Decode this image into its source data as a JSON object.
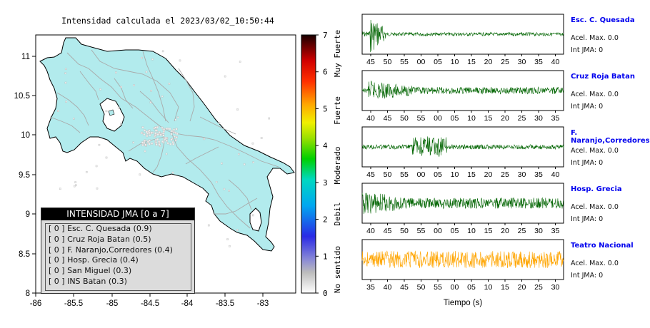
{
  "map": {
    "title": "Intensidad calculada el 2023/03/02_10:50:44",
    "lon_ticks": [
      "-86",
      "-85.5",
      "-85",
      "-84.5",
      "-84",
      "-83.5",
      "-83"
    ],
    "lat_ticks": [
      "11",
      "10.5",
      "10",
      "9.5",
      "9",
      "8.5",
      "8"
    ],
    "land_color": "#b2ebed",
    "border_color": "#000000",
    "road_color": "#a9a9a9"
  },
  "colorbar": {
    "ticks": [
      "7",
      "6",
      "5",
      "4",
      "3",
      "2",
      "1",
      "0"
    ],
    "category_labels": [
      "Muy Fuerte",
      "Fuerte",
      "Moderado",
      "Debil",
      "No sentido"
    ]
  },
  "legend": {
    "title": "INTENSIDAD JMA [0 a 7]",
    "rows": [
      "[ 0 ]  Esc. C. Quesada (0.9)",
      "[ 0 ]  Cruz Roja Batan (0.5)",
      "[ 0 ]  F. Naranjo,Corredores (0.4)",
      "[ 0 ]  Hosp. Grecia (0.4)",
      "[ 0 ]  San Miguel (0.3)",
      "[ 0 ]  INS Batan (0.3)"
    ]
  },
  "waveforms": {
    "xlabel": "Tiempo (s)",
    "panels": [
      {
        "station": "Esc. C. Quesada",
        "acel": "Acel. Max. 0.0",
        "int": "Int JMA: 0",
        "ticks": [
          "45",
          "50",
          "55",
          "00",
          "05",
          "10",
          "15",
          "20",
          "25",
          "30",
          "35",
          "40"
        ],
        "color": "#006400"
      },
      {
        "station": "Cruz Roja Batan",
        "acel": "Acel. Max. 0.0",
        "int": "Int JMA: 0",
        "ticks": [
          "40",
          "45",
          "50",
          "55",
          "00",
          "05",
          "10",
          "15",
          "20",
          "25",
          "30",
          "35"
        ],
        "color": "#006400"
      },
      {
        "station": "F. Naranjo,Corredores",
        "acel": "Acel. Max. 0.0",
        "int": "Int JMA: 0",
        "ticks": [
          "45",
          "50",
          "55",
          "00",
          "05",
          "10",
          "15",
          "20",
          "25",
          "30",
          "35",
          "40"
        ],
        "color": "#006400"
      },
      {
        "station": "Hosp. Grecia",
        "acel": "Acel. Max. 0.0",
        "int": "Int JMA: 0",
        "ticks": [
          "40",
          "45",
          "50",
          "55",
          "00",
          "05",
          "10",
          "15",
          "20",
          "25",
          "30",
          "35"
        ],
        "color": "#006400"
      },
      {
        "station": "Teatro Nacional",
        "acel": "Acel. Max. 0.0",
        "int": "Int JMA: 0",
        "ticks": [
          "35",
          "40",
          "45",
          "50",
          "55",
          "00",
          "05",
          "10",
          "15",
          "20",
          "25",
          "30"
        ],
        "color": "#ffa500"
      }
    ]
  }
}
